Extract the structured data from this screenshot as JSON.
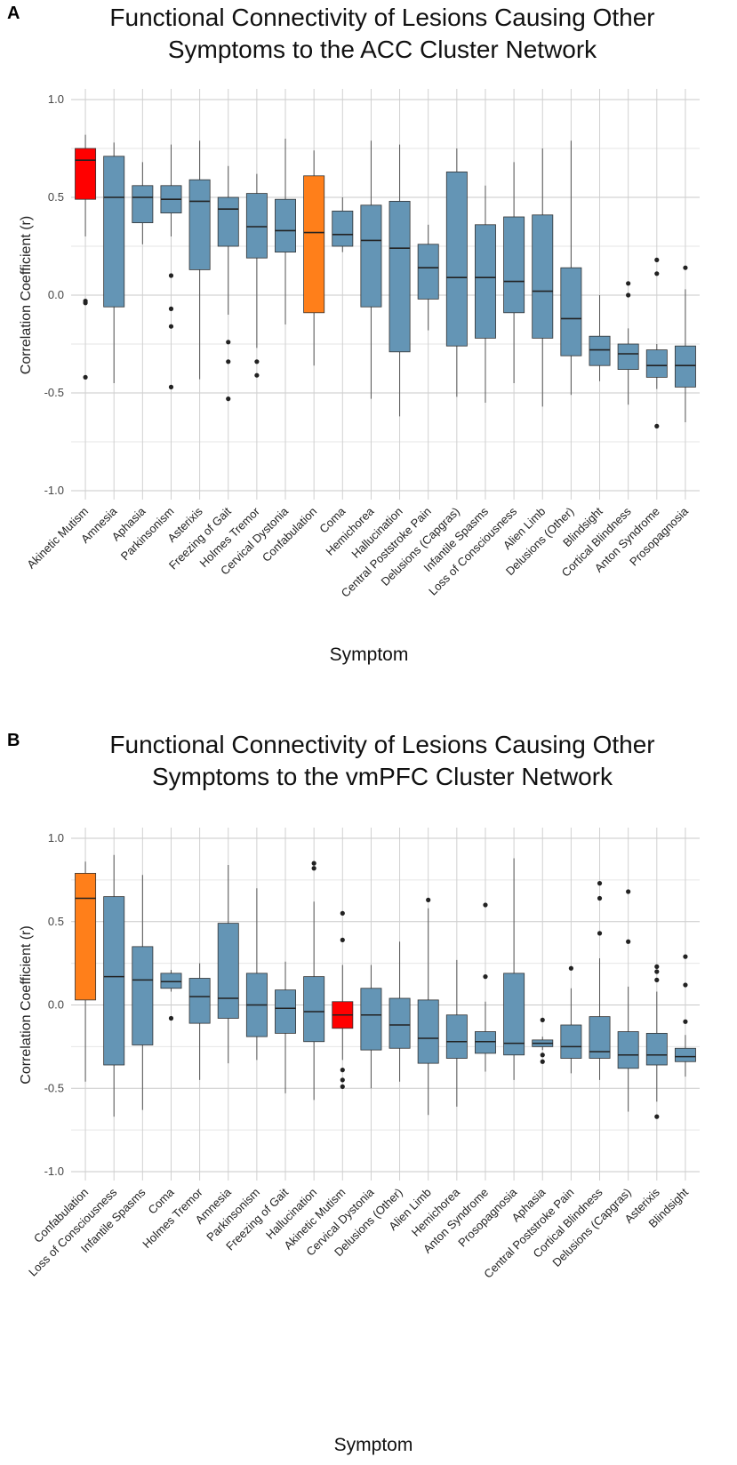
{
  "chart_data": [
    {
      "panel_letter": "A",
      "type": "box",
      "title_lines": [
        "Functional Connectivity of Lesions Causing Other",
        "Symptoms to the ACC Cluster Network"
      ],
      "xlabel": "Symptom",
      "ylabel": "Correlation Coefficient (r)",
      "ylim": [
        -1.1,
        1.1
      ],
      "yticks": [
        "1.0",
        "0.5",
        "0.0",
        "-0.5",
        "-1.0"
      ],
      "grid": true,
      "colors": {
        "default": "#6495B5",
        "highlight_red": "#FF0000",
        "highlight_orange": "#FF7F1A"
      },
      "boxes": [
        {
          "label": "Akinetic Mutism",
          "color": "red",
          "lw": 0.3,
          "q1": 0.49,
          "median": 0.69,
          "q3": 0.75,
          "hi": 0.82,
          "outliers": [
            -0.03,
            -0.04,
            -0.42
          ]
        },
        {
          "label": "Amnesia",
          "color": "default",
          "lw": -0.45,
          "q1": -0.06,
          "median": 0.5,
          "q3": 0.71,
          "hi": 0.78,
          "outliers": []
        },
        {
          "label": "Aphasia",
          "color": "default",
          "lw": 0.26,
          "q1": 0.37,
          "median": 0.5,
          "q3": 0.56,
          "hi": 0.68,
          "outliers": []
        },
        {
          "label": "Parkinsonism",
          "color": "default",
          "lw": 0.3,
          "q1": 0.42,
          "median": 0.49,
          "q3": 0.56,
          "hi": 0.77,
          "outliers": [
            0.1,
            -0.07,
            -0.16,
            -0.47
          ]
        },
        {
          "label": "Asterixis",
          "color": "default",
          "lw": -0.43,
          "q1": 0.13,
          "median": 0.48,
          "q3": 0.59,
          "hi": 0.79,
          "outliers": []
        },
        {
          "label": "Freezing of Gait",
          "color": "default",
          "lw": -0.1,
          "q1": 0.25,
          "median": 0.44,
          "q3": 0.5,
          "hi": 0.66,
          "outliers": [
            -0.24,
            -0.34,
            -0.53
          ]
        },
        {
          "label": "Holmes Tremor",
          "color": "default",
          "lw": -0.27,
          "q1": 0.19,
          "median": 0.35,
          "q3": 0.52,
          "hi": 0.62,
          "outliers": [
            -0.34,
            -0.41
          ]
        },
        {
          "label": "Cervical Dystonia",
          "color": "default",
          "lw": -0.15,
          "q1": 0.22,
          "median": 0.33,
          "q3": 0.49,
          "hi": 0.8,
          "outliers": []
        },
        {
          "label": "Confabulation",
          "color": "orange",
          "lw": -0.36,
          "q1": -0.09,
          "median": 0.32,
          "q3": 0.61,
          "hi": 0.74,
          "outliers": []
        },
        {
          "label": "Coma",
          "color": "default",
          "lw": 0.22,
          "q1": 0.25,
          "median": 0.31,
          "q3": 0.43,
          "hi": 0.5,
          "outliers": []
        },
        {
          "label": "Hemichorea",
          "color": "default",
          "lw": -0.53,
          "q1": -0.06,
          "median": 0.28,
          "q3": 0.46,
          "hi": 0.79,
          "outliers": []
        },
        {
          "label": "Hallucination",
          "color": "default",
          "lw": -0.62,
          "q1": -0.29,
          "median": 0.24,
          "q3": 0.48,
          "hi": 0.77,
          "outliers": []
        },
        {
          "label": "Central Poststroke Pain",
          "color": "default",
          "lw": -0.18,
          "q1": -0.02,
          "median": 0.14,
          "q3": 0.26,
          "hi": 0.36,
          "outliers": []
        },
        {
          "label": "Delusions (Capgras)",
          "color": "default",
          "lw": -0.52,
          "q1": -0.26,
          "median": 0.09,
          "q3": 0.63,
          "hi": 0.75,
          "outliers": []
        },
        {
          "label": "Infantile Spasms",
          "color": "default",
          "lw": -0.55,
          "q1": -0.22,
          "median": 0.09,
          "q3": 0.36,
          "hi": 0.56,
          "outliers": []
        },
        {
          "label": "Loss of Consciousness",
          "color": "default",
          "lw": -0.45,
          "q1": -0.09,
          "median": 0.07,
          "q3": 0.4,
          "hi": 0.68,
          "outliers": []
        },
        {
          "label": "Alien Limb",
          "color": "default",
          "lw": -0.57,
          "q1": -0.22,
          "median": 0.02,
          "q3": 0.41,
          "hi": 0.75,
          "outliers": []
        },
        {
          "label": "Delusions (Other)",
          "color": "default",
          "lw": -0.51,
          "q1": -0.31,
          "median": -0.12,
          "q3": 0.14,
          "hi": 0.79,
          "outliers": []
        },
        {
          "label": "Blindsight",
          "color": "default",
          "lw": -0.44,
          "q1": -0.36,
          "median": -0.28,
          "q3": -0.21,
          "hi": 0.0,
          "outliers": []
        },
        {
          "label": "Cortical Blindness",
          "color": "default",
          "lw": -0.56,
          "q1": -0.38,
          "median": -0.3,
          "q3": -0.25,
          "hi": -0.17,
          "outliers": [
            0.06,
            0.0
          ]
        },
        {
          "label": "Anton Syndrome",
          "color": "default",
          "lw": -0.48,
          "q1": -0.42,
          "median": -0.36,
          "q3": -0.28,
          "hi": -0.25,
          "outliers": [
            0.18,
            0.11,
            -0.67
          ]
        },
        {
          "label": "Prosopagnosia",
          "color": "default",
          "lw": -0.65,
          "q1": -0.47,
          "median": -0.36,
          "q3": -0.26,
          "hi": 0.03,
          "outliers": [
            0.14
          ]
        }
      ]
    },
    {
      "panel_letter": "B",
      "type": "box",
      "title_lines": [
        "Functional Connectivity of Lesions Causing Other",
        "Symptoms to the vmPFC Cluster Network"
      ],
      "xlabel": "Symptom",
      "ylabel": "Correlation Coefficient (r)",
      "ylim": [
        -1.1,
        1.1
      ],
      "yticks": [
        "1.0",
        "0.5",
        "0.0",
        "-0.5",
        "-1.0"
      ],
      "grid": true,
      "colors": {
        "default": "#6495B5",
        "highlight_red": "#FF0000",
        "highlight_orange": "#FF7F1A"
      },
      "boxes": [
        {
          "label": "Confabulation",
          "color": "orange",
          "lw": -0.46,
          "q1": 0.03,
          "median": 0.64,
          "q3": 0.79,
          "hi": 0.86,
          "outliers": []
        },
        {
          "label": "Loss of Consciousness",
          "color": "default",
          "lw": -0.67,
          "q1": -0.36,
          "median": 0.17,
          "q3": 0.65,
          "hi": 0.9,
          "outliers": []
        },
        {
          "label": "Infantile Spasms",
          "color": "default",
          "lw": -0.63,
          "q1": -0.24,
          "median": 0.15,
          "q3": 0.35,
          "hi": 0.78,
          "outliers": []
        },
        {
          "label": "Coma",
          "color": "default",
          "lw": 0.08,
          "q1": 0.1,
          "median": 0.14,
          "q3": 0.19,
          "hi": 0.21,
          "outliers": [
            -0.08
          ]
        },
        {
          "label": "Holmes Tremor",
          "color": "default",
          "lw": -0.45,
          "q1": -0.11,
          "median": 0.05,
          "q3": 0.16,
          "hi": 0.25,
          "outliers": []
        },
        {
          "label": "Amnesia",
          "color": "default",
          "lw": -0.35,
          "q1": -0.08,
          "median": 0.04,
          "q3": 0.49,
          "hi": 0.84,
          "outliers": []
        },
        {
          "label": "Parkinsonism",
          "color": "default",
          "lw": -0.33,
          "q1": -0.19,
          "median": 0.0,
          "q3": 0.19,
          "hi": 0.7,
          "outliers": []
        },
        {
          "label": "Freezing of Gait",
          "color": "default",
          "lw": -0.53,
          "q1": -0.17,
          "median": -0.02,
          "q3": 0.09,
          "hi": 0.26,
          "outliers": []
        },
        {
          "label": "Hallucination",
          "color": "default",
          "lw": -0.57,
          "q1": -0.22,
          "median": -0.04,
          "q3": 0.17,
          "hi": 0.62,
          "outliers": [
            0.85,
            0.82
          ]
        },
        {
          "label": "Akinetic Mutism",
          "color": "red",
          "lw": -0.33,
          "q1": -0.14,
          "median": -0.06,
          "q3": 0.02,
          "hi": 0.24,
          "outliers": [
            0.55,
            0.39,
            -0.39,
            -0.45,
            -0.49
          ]
        },
        {
          "label": "Cervical Dystonia",
          "color": "default",
          "lw": -0.5,
          "q1": -0.27,
          "median": -0.06,
          "q3": 0.1,
          "hi": 0.24,
          "outliers": []
        },
        {
          "label": "Delusions (Other)",
          "color": "default",
          "lw": -0.46,
          "q1": -0.26,
          "median": -0.12,
          "q3": 0.04,
          "hi": 0.38,
          "outliers": []
        },
        {
          "label": "Alien Limb",
          "color": "default",
          "lw": -0.66,
          "q1": -0.35,
          "median": -0.2,
          "q3": 0.03,
          "hi": 0.58,
          "outliers": [
            0.63
          ]
        },
        {
          "label": "Hemichorea",
          "color": "default",
          "lw": -0.61,
          "q1": -0.32,
          "median": -0.22,
          "q3": -0.06,
          "hi": 0.27,
          "outliers": []
        },
        {
          "label": "Anton Syndrome",
          "color": "default",
          "lw": -0.4,
          "q1": -0.29,
          "median": -0.22,
          "q3": -0.16,
          "hi": 0.02,
          "outliers": [
            0.6,
            0.17
          ]
        },
        {
          "label": "Prosopagnosia",
          "color": "default",
          "lw": -0.45,
          "q1": -0.3,
          "median": -0.23,
          "q3": 0.19,
          "hi": 0.88,
          "outliers": []
        },
        {
          "label": "Aphasia",
          "color": "default",
          "lw": -0.27,
          "q1": -0.25,
          "median": -0.23,
          "q3": -0.21,
          "hi": -0.19,
          "outliers": [
            -0.09,
            -0.3,
            -0.34
          ]
        },
        {
          "label": "Central Poststroke Pain",
          "color": "default",
          "lw": -0.41,
          "q1": -0.32,
          "median": -0.25,
          "q3": -0.12,
          "hi": 0.1,
          "outliers": [
            0.22
          ]
        },
        {
          "label": "Cortical Blindness",
          "color": "default",
          "lw": -0.45,
          "q1": -0.32,
          "median": -0.28,
          "q3": -0.07,
          "hi": 0.28,
          "outliers": [
            0.73,
            0.64,
            0.43
          ]
        },
        {
          "label": "Delusions (Capgras)",
          "color": "default",
          "lw": -0.64,
          "q1": -0.38,
          "median": -0.3,
          "q3": -0.16,
          "hi": 0.11,
          "outliers": [
            0.68,
            0.38
          ]
        },
        {
          "label": "Asterixis",
          "color": "default",
          "lw": -0.58,
          "q1": -0.36,
          "median": -0.3,
          "q3": -0.17,
          "hi": 0.08,
          "outliers": [
            0.23,
            0.2,
            0.15,
            -0.67
          ]
        },
        {
          "label": "Blindsight",
          "color": "default",
          "lw": -0.43,
          "q1": -0.34,
          "median": -0.31,
          "q3": -0.26,
          "hi": -0.18,
          "outliers": [
            0.29,
            0.12,
            -0.1
          ]
        }
      ]
    }
  ]
}
